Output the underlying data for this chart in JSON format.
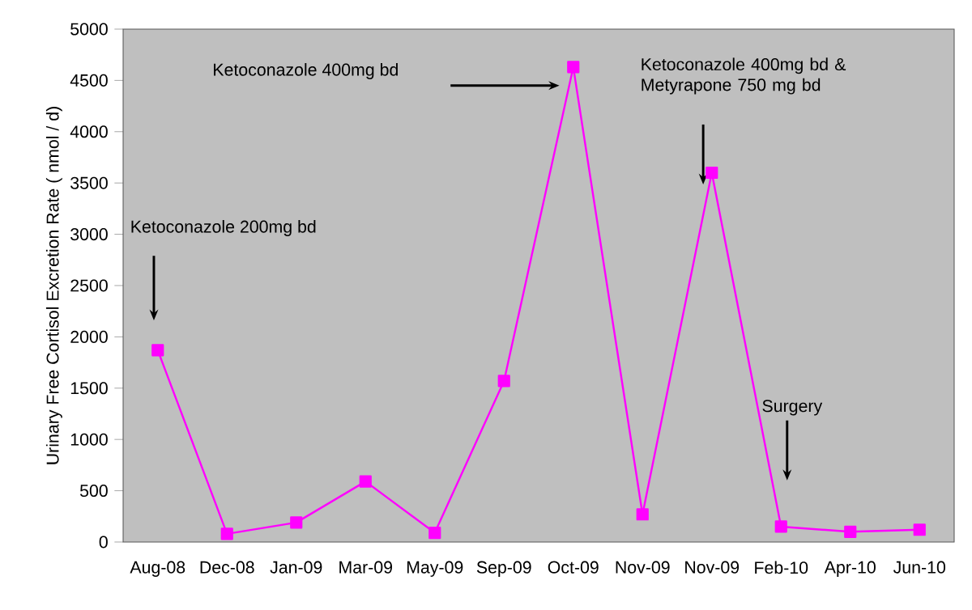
{
  "chart_data": {
    "type": "line",
    "ylabel": "Urinary Free Cortisol Excretion Rate ( nmol / d)",
    "categories": [
      "Aug-08",
      "Dec-08",
      "Jan-09",
      "Mar-09",
      "May-09",
      "Sep-09",
      "Oct-09",
      "Nov-09",
      "Nov-09",
      "Feb-10",
      "Apr-10",
      "Jun-10"
    ],
    "series": [
      {
        "color": "#ff00ff",
        "values": [
          1870,
          80,
          190,
          590,
          90,
          1570,
          4630,
          270,
          3600,
          150,
          100,
          120
        ]
      }
    ],
    "ylim": [
      0,
      5000
    ],
    "yticks": [
      0,
      500,
      1000,
      1500,
      2000,
      2500,
      3000,
      3500,
      4000,
      4500,
      5000
    ],
    "marker": "square",
    "line_style": "solid",
    "annotations": [
      "Ketoconazole 200mg bd",
      "Ketoconazole 400mg bd",
      "Ketoconazole 400mg bd & Metyrapone 750 mg bd",
      "Surgery"
    ]
  }
}
